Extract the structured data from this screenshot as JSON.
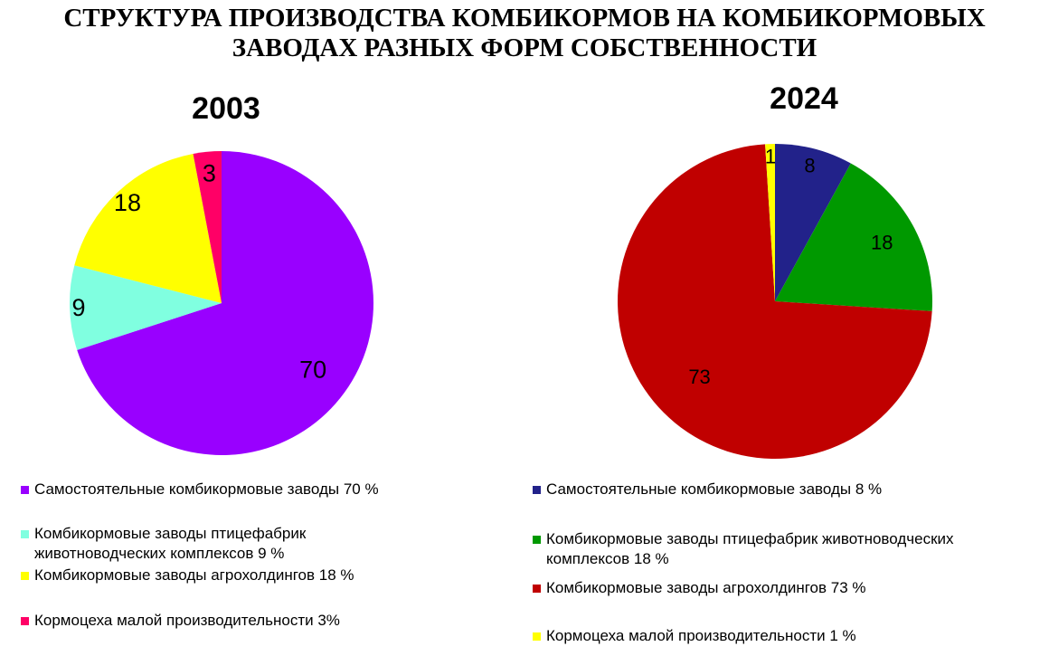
{
  "title": {
    "line1": "СТРУКТУРА ПРОИЗВОДСТВА КОМБИКОРМОВ НА КОМБИКОРМОВЫХ",
    "line2": "ЗАВОДАХ РАЗНЫХ ФОРМ СОБСТВЕННОСТИ"
  },
  "chart_data": [
    {
      "type": "pie",
      "title": "2003",
      "categories": [
        "Самостоятельные комбикормовые заводы 70  %",
        "Комбикормовые заводы птицефабрик животноводческих комплексов 9 %",
        "Комбикормовые заводы агрохолдингов 18 %",
        "Кормоцеха малой производительности 3%"
      ],
      "values": [
        70,
        9,
        18,
        3
      ],
      "labels": [
        "70",
        "9",
        "18",
        "3"
      ],
      "colors": [
        "#9900FF",
        "#80FFE0",
        "#FFFF00",
        "#FF0066"
      ],
      "legend": "bottom"
    },
    {
      "type": "pie",
      "title": "2024",
      "categories": [
        "Самостоятельные комбикормовые заводы 8 %",
        "Комбикормовые заводы птицефабрик животноводческих комплексов 18 %",
        "Комбикормовые заводы агрохолдингов 73 %",
        "Кормоцеха малой производительности 1 %"
      ],
      "values": [
        8,
        18,
        73,
        1
      ],
      "labels": [
        "8",
        "18",
        "73",
        "1"
      ],
      "colors": [
        "#22228A",
        "#009900",
        "#C00000",
        "#FFFF00"
      ],
      "legend": "bottom"
    }
  ]
}
